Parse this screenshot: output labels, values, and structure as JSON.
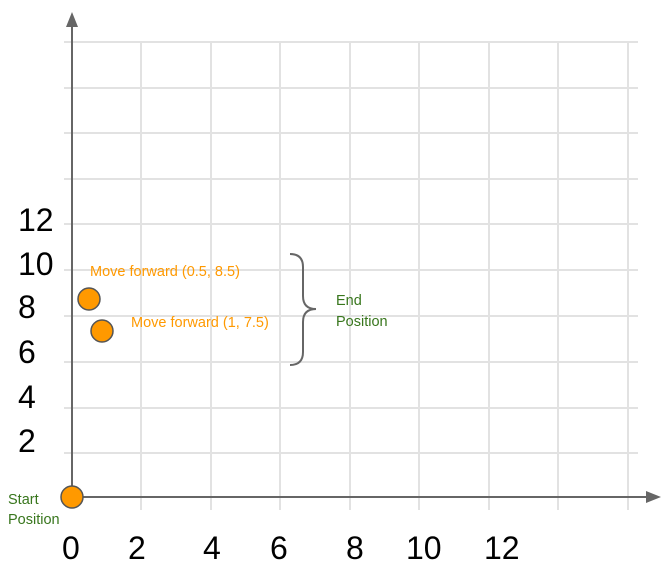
{
  "colors": {
    "grid": "#e2e2e2",
    "axis": "#666666",
    "point_fill": "#ff9900",
    "point_stroke": "#555555",
    "orange_text": "#ff9900",
    "green_text": "#38761d"
  },
  "chart_data": {
    "type": "scatter",
    "x_ticks": [
      "0",
      "2",
      "4",
      "6",
      "8",
      "10",
      "12"
    ],
    "y_ticks": [
      "2",
      "4",
      "6",
      "8",
      "10",
      "12"
    ],
    "points": [
      {
        "x": 0,
        "y": 0,
        "label": "Start Position",
        "label_lines": [
          "Start",
          "Position"
        ]
      },
      {
        "x": 0.5,
        "y": 8.5,
        "label": "Move forward (0.5, 8.5)"
      },
      {
        "x": 1,
        "y": 7.5,
        "label": "Move forward (1, 7.5)"
      }
    ],
    "brace_label": "End Position",
    "brace_label_lines": [
      "End",
      "Position"
    ],
    "grid": true
  }
}
